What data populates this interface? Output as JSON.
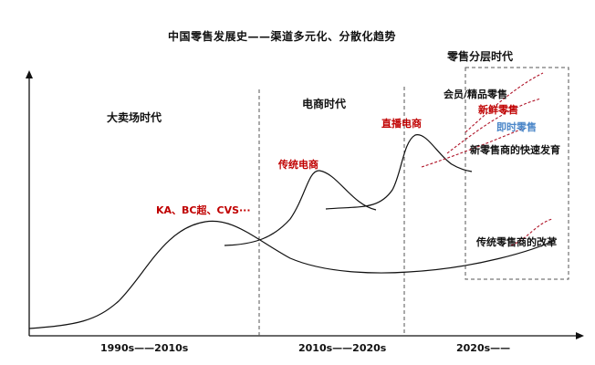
{
  "title": "中国零售发展史——渠道多元化、分散化趋势",
  "eras": {
    "hypermarket": "大卖场时代",
    "ecommerce": "电商时代",
    "layered": "零售分层时代"
  },
  "annotations": {
    "ka_bc_cvs": "KA、BC超、CVS···",
    "traditional_ecommerce": "传统电商",
    "livestream_ecommerce": "直播电商",
    "member_premium": "会员/精品零售",
    "fresh_retail": "新鲜零售",
    "instant_retail": "即时零售",
    "new_retailer_growth": "新零售商的快速发育",
    "traditional_retailer_reform": "传统零售商的改革"
  },
  "axis": {
    "period_1": "1990s——2010s",
    "period_2": "2010s——2020s",
    "period_3": "2020s——"
  },
  "colors": {
    "text": "#111111",
    "emphasis_red": "#c00000",
    "instant_blue": "#4a86c8",
    "line": "#111111",
    "dashed_red": "#b0162a"
  }
}
